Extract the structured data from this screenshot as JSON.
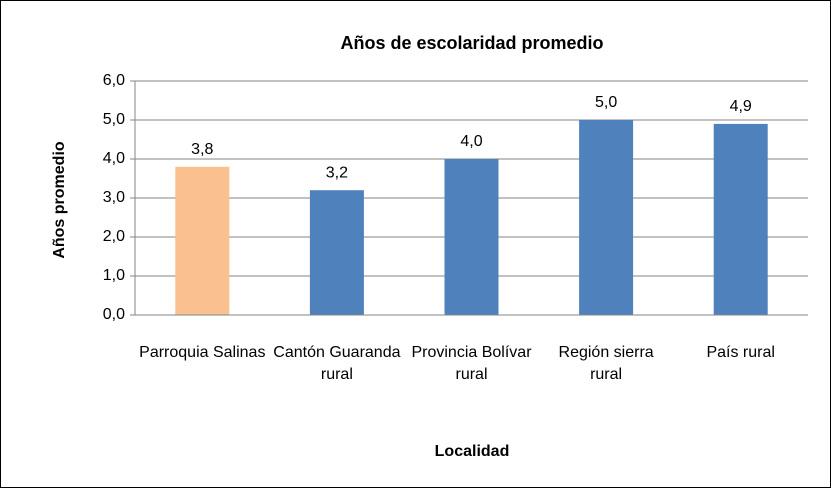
{
  "chart_data": {
    "type": "bar",
    "title": "Años de escolaridad promedio",
    "x_label": "Localidad",
    "y_label": "Años promedio",
    "categories": [
      "Parroquia Salinas",
      "Cantón Guaranda rural",
      "Provincia Bolívar rural",
      "Región sierra rural",
      "País rural"
    ],
    "values": [
      3.8,
      3.2,
      4.0,
      5.0,
      4.9
    ],
    "value_labels": [
      "3,8",
      "3,2",
      "4,0",
      "5,0",
      "4,9"
    ],
    "colors": [
      "#fac090",
      "#4f81bd",
      "#4f81bd",
      "#4f81bd",
      "#4f81bd"
    ],
    "ylim": [
      0,
      6
    ],
    "yticks": [
      {
        "value": 0,
        "label": "0,0"
      },
      {
        "value": 1,
        "label": "1,0"
      },
      {
        "value": 2,
        "label": "2,0"
      },
      {
        "value": 3,
        "label": "3,0"
      },
      {
        "value": 4,
        "label": "4,0"
      },
      {
        "value": 5,
        "label": "5,0"
      },
      {
        "value": 6,
        "label": "6,0"
      }
    ],
    "grid": true
  }
}
